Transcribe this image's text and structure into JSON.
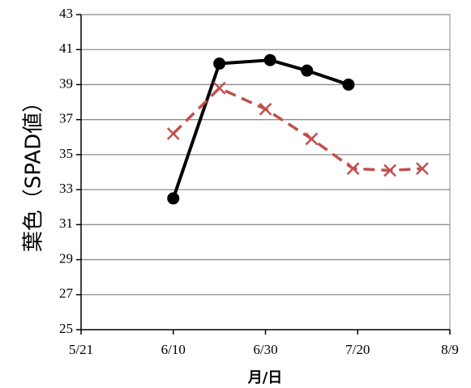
{
  "chart_data": {
    "type": "line",
    "ylabel": "葉色（SPAD値）",
    "xlabel": "月/日",
    "ylim": [
      25,
      43
    ],
    "yticks": [
      25,
      27,
      29,
      31,
      33,
      35,
      37,
      39,
      41,
      43
    ],
    "xlim": [
      "5/21",
      "8/9"
    ],
    "xticks": [
      "5/21",
      "6/10",
      "6/30",
      "7/20",
      "8/9"
    ],
    "grid": true,
    "series": [
      {
        "color": "#000000",
        "style": "solid",
        "marker": "circle",
        "x": [
          "6/10",
          "6/20",
          "7/1",
          "7/9",
          "7/18"
        ],
        "y": [
          32.5,
          40.2,
          40.4,
          39.8,
          39.0
        ]
      },
      {
        "color": "#c0504d",
        "style": "dashed",
        "marker": "x",
        "x": [
          "6/10",
          "6/20",
          "6/30",
          "7/10",
          "7/19",
          "7/27",
          "8/3"
        ],
        "y": [
          36.2,
          38.8,
          37.6,
          35.9,
          34.2,
          34.1,
          34.2
        ]
      }
    ]
  }
}
